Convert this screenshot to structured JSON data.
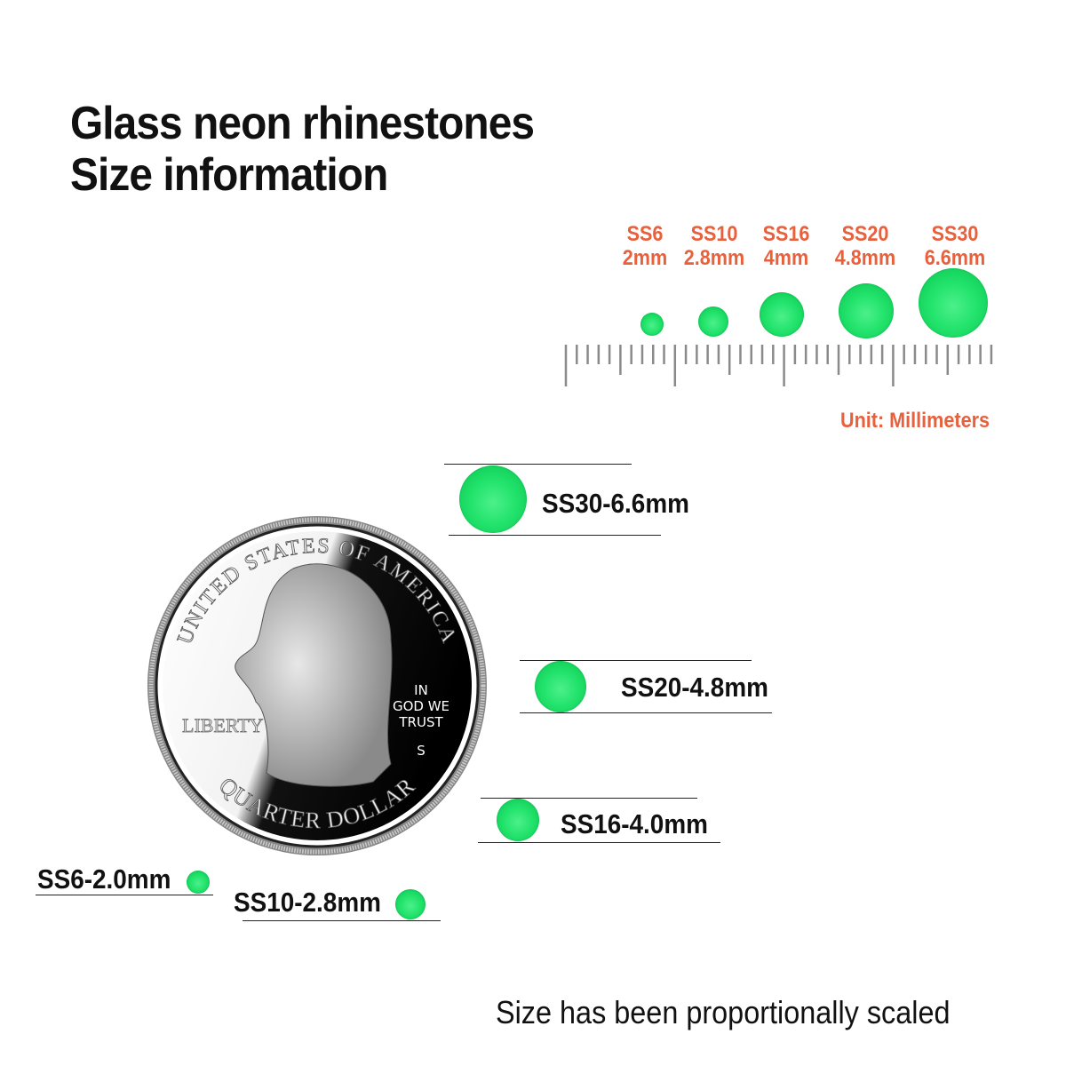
{
  "title_lines": [
    "Glass neon rhinestones",
    "Size information"
  ],
  "chart_labels": [
    {
      "code": "SS6",
      "size": "2mm"
    },
    {
      "code": "SS10",
      "size": "2.8mm"
    },
    {
      "code": "SS16",
      "size": "4mm"
    },
    {
      "code": "SS20",
      "size": "4.8mm"
    },
    {
      "code": "SS30",
      "size": "6.6mm"
    }
  ],
  "unit_label": "Unit: Millimeters",
  "comparison_labels": {
    "ss30": "SS30-6.6mm",
    "ss20": "SS20-4.8mm",
    "ss16": "SS16-4.0mm",
    "ss6": "SS6-2.0mm",
    "ss10": "SS10-2.8mm"
  },
  "coin": {
    "top_text": "UNITED STATES OF AMERICA",
    "bottom_text": "QUARTER DOLLAR",
    "liberty": "LIBERTY",
    "motto": [
      "IN",
      "GOD WE",
      "TRUST"
    ],
    "mint_mark": "S"
  },
  "footnote": "Size has been proportionally scaled",
  "colors": {
    "accent": "#e8603c",
    "gem": "#22e36c",
    "text": "#111111"
  }
}
